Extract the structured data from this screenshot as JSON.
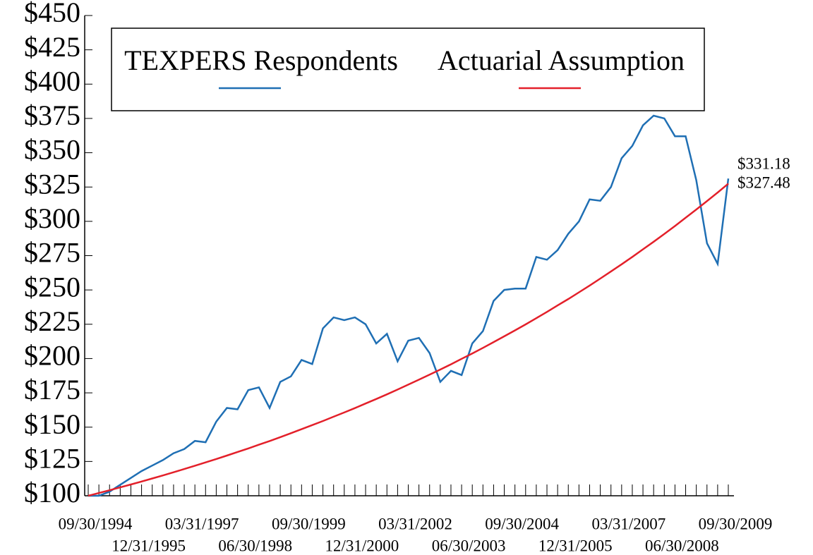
{
  "chart_data": {
    "type": "line",
    "categories": [
      "09/30/1994",
      null,
      null,
      null,
      null,
      "12/31/1995",
      null,
      null,
      null,
      null,
      "03/31/1997",
      null,
      null,
      null,
      null,
      "06/30/1998",
      null,
      null,
      null,
      null,
      "09/30/1999",
      null,
      null,
      null,
      null,
      "12/31/2000",
      null,
      null,
      null,
      null,
      "03/31/2002",
      null,
      null,
      null,
      null,
      "06/30/2003",
      null,
      null,
      null,
      null,
      "09/30/2004",
      null,
      null,
      null,
      null,
      "12/31/2005",
      null,
      null,
      null,
      null,
      "03/31/2007",
      null,
      null,
      null,
      null,
      "06/30/2008",
      null,
      null,
      null,
      null,
      "09/30/2009"
    ],
    "series": [
      {
        "name": "TEXPERS Respondents",
        "color": "#1f6fb4",
        "values": [
          100,
          100,
          103,
          108,
          113,
          118,
          122,
          126,
          131,
          134,
          140,
          139,
          154,
          164,
          163,
          177,
          179,
          164,
          183,
          187,
          199,
          196,
          222,
          230,
          228,
          230,
          225,
          211,
          218,
          198,
          213,
          215,
          204,
          183,
          191,
          188,
          211,
          220,
          242,
          250,
          251,
          251,
          274,
          272,
          279,
          291,
          300,
          316,
          315,
          325,
          346,
          355,
          370,
          377,
          375,
          362,
          362,
          330,
          284,
          269,
          331.18
        ],
        "value_labels": [
          null,
          null,
          null,
          null,
          null,
          null,
          null,
          null,
          null,
          null,
          null,
          null,
          null,
          null,
          null,
          null,
          null,
          null,
          null,
          null,
          null,
          null,
          null,
          null,
          null,
          null,
          null,
          null,
          null,
          null,
          null,
          null,
          null,
          null,
          null,
          null,
          null,
          null,
          null,
          null,
          null,
          null,
          null,
          null,
          null,
          null,
          null,
          null,
          null,
          null,
          null,
          null,
          null,
          null,
          null,
          null,
          null,
          null,
          null,
          null,
          "$331.18"
        ]
      },
      {
        "name": "Actuarial Assumption",
        "color": "#e3202a",
        "values": [
          100,
          102,
          104,
          106.1,
          108.2,
          110.4,
          112.6,
          114.8,
          117.1,
          119.5,
          121.9,
          124.3,
          126.8,
          129.3,
          131.9,
          134.5,
          137.2,
          139.9,
          142.7,
          145.6,
          148.5,
          151.5,
          154.5,
          157.6,
          160.7,
          163.9,
          167.2,
          170.5,
          173.9,
          177.4,
          181,
          184.6,
          188.3,
          192,
          195.8,
          199.8,
          203.7,
          207.8,
          212,
          216.2,
          220.5,
          224.9,
          229.4,
          234,
          238.7,
          243.4,
          248.3,
          253.2,
          258.3,
          263.5,
          268.7,
          274.1,
          279.6,
          285.1,
          290.8,
          296.6,
          302.6,
          308.6,
          314.8,
          321,
          327.48
        ],
        "value_labels": [
          null,
          null,
          null,
          null,
          null,
          null,
          null,
          null,
          null,
          null,
          null,
          null,
          null,
          null,
          null,
          null,
          null,
          null,
          null,
          null,
          null,
          null,
          null,
          null,
          null,
          null,
          null,
          null,
          null,
          null,
          null,
          null,
          null,
          null,
          null,
          null,
          null,
          null,
          null,
          null,
          null,
          null,
          null,
          null,
          null,
          null,
          null,
          null,
          null,
          null,
          null,
          null,
          null,
          null,
          null,
          null,
          null,
          null,
          null,
          null,
          "$327.48"
        ]
      }
    ],
    "ylim": [
      100,
      450
    ],
    "yticks": [
      {
        "value": 100,
        "label": "$100"
      },
      {
        "value": 125,
        "label": "$125"
      },
      {
        "value": 150,
        "label": "$150"
      },
      {
        "value": 175,
        "label": "$175"
      },
      {
        "value": 200,
        "label": "$200"
      },
      {
        "value": 225,
        "label": "$225"
      },
      {
        "value": 250,
        "label": "$250"
      },
      {
        "value": 275,
        "label": "$275"
      },
      {
        "value": 300,
        "label": "$300"
      },
      {
        "value": 325,
        "label": "$325"
      },
      {
        "value": 350,
        "label": "$350"
      },
      {
        "value": 375,
        "label": "$375"
      },
      {
        "value": 400,
        "label": "$400"
      },
      {
        "value": 425,
        "label": "$425"
      },
      {
        "value": 450,
        "label": "$450"
      }
    ],
    "legend": "top"
  }
}
